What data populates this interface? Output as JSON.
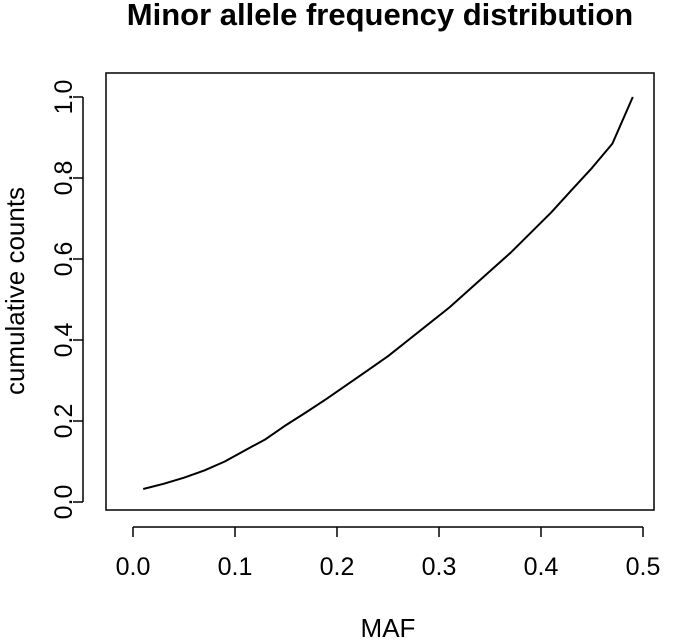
{
  "chart_data": {
    "type": "line",
    "title": "Minor allele frequency distribution",
    "xlabel": "MAF",
    "ylabel": "cumulative counts",
    "xlim": [
      0.0,
      0.5
    ],
    "ylim": [
      0.0,
      1.0
    ],
    "x_ticks": [
      0.0,
      0.1,
      0.2,
      0.3,
      0.4,
      0.5
    ],
    "x_tick_labels": [
      "0.0",
      "0.1",
      "0.2",
      "0.3",
      "0.4",
      "0.5"
    ],
    "y_ticks": [
      0.0,
      0.2,
      0.4,
      0.6,
      0.8,
      1.0
    ],
    "y_tick_labels": [
      "0.0",
      "0.2",
      "0.4",
      "0.6",
      "0.8",
      "1.0"
    ],
    "grid": false,
    "legend": "none",
    "line_color": "#000000",
    "series": [
      {
        "x": [
          0.01,
          0.03,
          0.05,
          0.07,
          0.09,
          0.11,
          0.13,
          0.15,
          0.17,
          0.19,
          0.21,
          0.23,
          0.25,
          0.27,
          0.29,
          0.31,
          0.33,
          0.35,
          0.37,
          0.39,
          0.41,
          0.43,
          0.45,
          0.47,
          0.49
        ],
        "y": [
          0.032,
          0.045,
          0.06,
          0.078,
          0.1,
          0.128,
          0.155,
          0.19,
          0.222,
          0.255,
          0.29,
          0.325,
          0.36,
          0.4,
          0.44,
          0.48,
          0.525,
          0.57,
          0.615,
          0.665,
          0.715,
          0.77,
          0.825,
          0.885,
          1.0
        ]
      }
    ]
  }
}
